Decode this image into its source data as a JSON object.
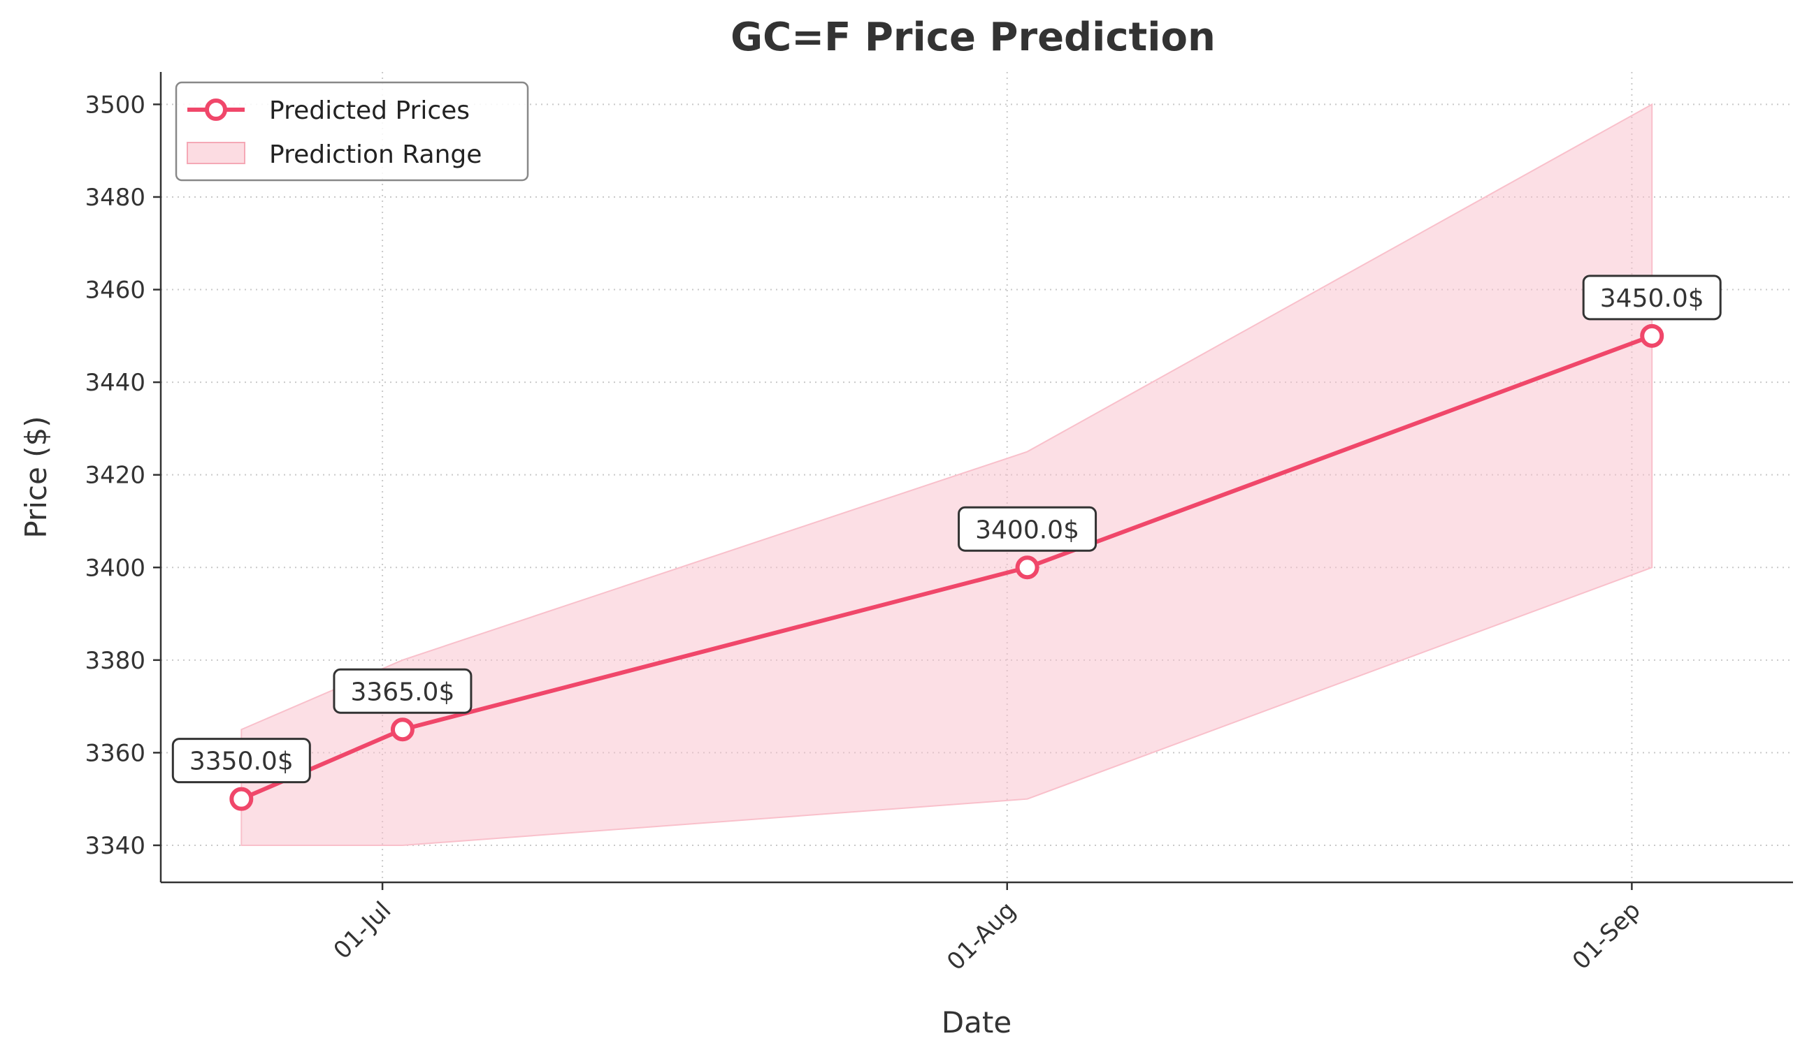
{
  "chart_data": {
    "type": "line",
    "title": "GC=F Price Prediction",
    "xlabel": "Date",
    "ylabel": "Price ($)",
    "x_dates": [
      "2025-06-24",
      "2025-07-02",
      "2025-08-02",
      "2025-09-02"
    ],
    "x_tick_labels": [
      "01-Jul",
      "01-Aug",
      "01-Sep"
    ],
    "x_tick_dates": [
      "2025-07-01",
      "2025-08-01",
      "2025-09-01"
    ],
    "y_ticks": [
      3340,
      3360,
      3380,
      3400,
      3420,
      3440,
      3460,
      3480,
      3500
    ],
    "ylim": [
      3332,
      3507
    ],
    "series": [
      {
        "name": "Predicted Prices",
        "values": [
          3350,
          3365,
          3400,
          3450
        ],
        "color": "#f0476a"
      }
    ],
    "range": {
      "name": "Prediction Range",
      "lower": [
        3340,
        3340,
        3350,
        3400
      ],
      "upper": [
        3365,
        3380,
        3425,
        3500
      ],
      "color": "#f9c0cb"
    },
    "annotations": [
      "3350.0$",
      "3365.0$",
      "3400.0$",
      "3450.0$"
    ],
    "legend": {
      "position": "top-left",
      "entries": [
        "Predicted Prices",
        "Prediction Range"
      ]
    },
    "grid": true
  }
}
